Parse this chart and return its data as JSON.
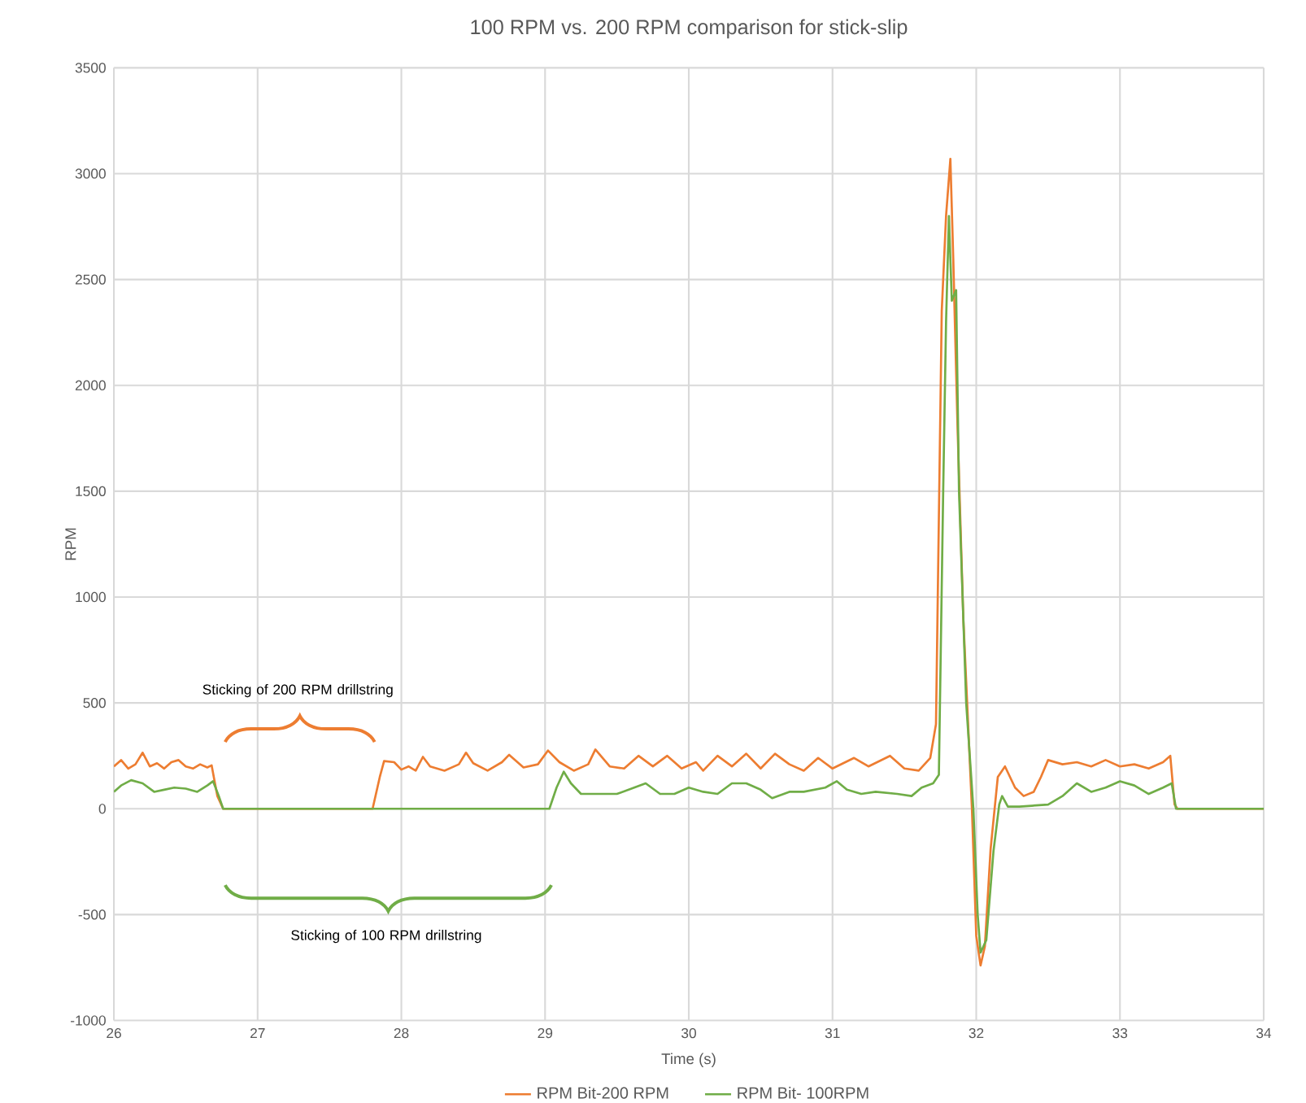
{
  "chart_data": {
    "type": "line",
    "title": "100 RPM vs. 200 RPM comparison for stick-slip",
    "xlabel": "Time (s)",
    "ylabel": "RPM",
    "xlim": [
      26,
      34
    ],
    "xticks": [
      26,
      27,
      28,
      29,
      30,
      31,
      32,
      33,
      34
    ],
    "ylim": [
      -1000,
      3500
    ],
    "yticks": [
      -1000,
      -500,
      0,
      500,
      1000,
      1500,
      2000,
      2500,
      3000,
      3500
    ],
    "grid": true,
    "legend": "bottom",
    "series": [
      {
        "name": "RPM Bit-200 RPM",
        "color": "#ed7d31",
        "x": [
          26.0,
          26.05,
          26.1,
          26.15,
          26.2,
          26.25,
          26.3,
          26.35,
          26.4,
          26.45,
          26.5,
          26.55,
          26.6,
          26.65,
          26.68,
          26.72,
          26.76,
          27.8,
          27.85,
          27.88,
          27.95,
          28.0,
          28.05,
          28.1,
          28.15,
          28.2,
          28.3,
          28.4,
          28.45,
          28.5,
          28.6,
          28.7,
          28.75,
          28.85,
          28.95,
          29.02,
          29.1,
          29.2,
          29.3,
          29.35,
          29.45,
          29.55,
          29.65,
          29.75,
          29.85,
          29.95,
          30.05,
          30.1,
          30.2,
          30.3,
          30.4,
          30.5,
          30.6,
          30.7,
          30.8,
          30.9,
          31.0,
          31.15,
          31.25,
          31.4,
          31.5,
          31.6,
          31.68,
          31.72,
          31.76,
          31.79,
          31.82,
          31.84,
          31.87,
          31.91,
          31.97,
          32.0,
          32.03,
          32.06,
          32.1,
          32.15,
          32.2,
          32.27,
          32.33,
          32.4,
          32.45,
          32.5,
          32.6,
          32.7,
          32.8,
          32.9,
          33.0,
          33.1,
          33.2,
          33.3,
          33.35,
          33.38,
          33.4,
          34.0
        ],
        "values": [
          200,
          230,
          190,
          210,
          265,
          200,
          215,
          190,
          220,
          230,
          200,
          190,
          210,
          195,
          205,
          60,
          0,
          0,
          150,
          225,
          220,
          185,
          200,
          180,
          245,
          200,
          180,
          210,
          265,
          215,
          180,
          220,
          255,
          195,
          210,
          275,
          220,
          180,
          210,
          280,
          200,
          190,
          250,
          200,
          250,
          190,
          220,
          180,
          250,
          200,
          260,
          190,
          260,
          210,
          180,
          240,
          190,
          240,
          200,
          250,
          190,
          180,
          240,
          400,
          2350,
          2800,
          3070,
          2600,
          1800,
          900,
          0,
          -600,
          -740,
          -650,
          -190,
          150,
          200,
          100,
          60,
          80,
          150,
          230,
          210,
          220,
          200,
          230,
          200,
          210,
          190,
          220,
          250,
          20,
          0,
          0
        ]
      },
      {
        "name": "RPM Bit- 100RPM",
        "color": "#70ad47",
        "x": [
          26.0,
          26.05,
          26.12,
          26.2,
          26.28,
          26.35,
          26.42,
          26.5,
          26.58,
          26.65,
          26.69,
          26.73,
          26.76,
          29.03,
          29.08,
          29.13,
          29.18,
          29.25,
          29.35,
          29.5,
          29.62,
          29.7,
          29.8,
          29.9,
          30.0,
          30.1,
          30.2,
          30.3,
          30.4,
          30.5,
          30.58,
          30.7,
          30.8,
          30.95,
          31.03,
          31.1,
          31.2,
          31.3,
          31.45,
          31.55,
          31.62,
          31.7,
          31.74,
          31.77,
          31.79,
          31.81,
          31.83,
          31.86,
          31.88,
          31.93,
          31.98,
          32.01,
          32.03,
          32.07,
          32.12,
          32.16,
          32.18,
          32.22,
          32.3,
          32.5,
          32.6,
          32.7,
          32.8,
          32.9,
          33.0,
          33.1,
          33.2,
          33.3,
          33.36,
          33.39,
          34.0
        ],
        "values": [
          80,
          110,
          135,
          120,
          80,
          90,
          100,
          95,
          80,
          110,
          130,
          60,
          0,
          0,
          100,
          175,
          120,
          70,
          70,
          70,
          100,
          120,
          70,
          70,
          100,
          80,
          70,
          120,
          120,
          90,
          50,
          80,
          80,
          100,
          130,
          90,
          70,
          80,
          70,
          60,
          100,
          120,
          160,
          1500,
          2300,
          2800,
          2400,
          2450,
          1500,
          500,
          0,
          -500,
          -680,
          -620,
          -200,
          20,
          60,
          10,
          10,
          20,
          60,
          120,
          80,
          100,
          130,
          110,
          70,
          100,
          120,
          0,
          0
        ]
      }
    ],
    "annotations": [
      "Sticking of 200 RPM drillstring",
      "Sticking of 100 RPM drillstring"
    ]
  }
}
